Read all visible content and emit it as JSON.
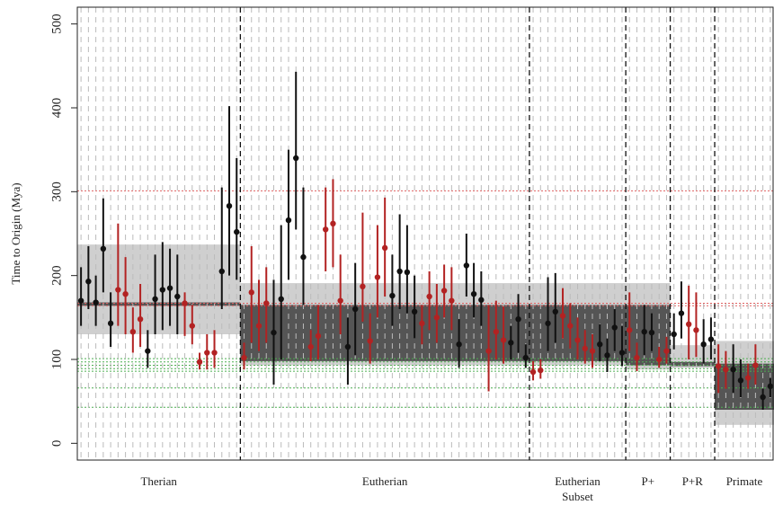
{
  "chart_data": {
    "type": "scatter",
    "ylabel": "Time to Origin (Mya)",
    "xlabel": "",
    "ylim": [
      -20,
      520
    ],
    "yticks": [
      0,
      100,
      200,
      300,
      400,
      500
    ],
    "grid": "vertical dashed lines per estimate",
    "colors": {
      "series_black": "#111111",
      "series_red": "#b22222",
      "band_light": "#cfcfcf",
      "band_dark": "#555555",
      "ref_red": "#e06060",
      "ref_green": "#4caf50"
    },
    "red_reference_lines": [
      301,
      167,
      164
    ],
    "green_reference_lines": [
      101,
      97,
      93,
      89,
      86,
      66,
      43
    ],
    "groups": [
      {
        "label": "Therian",
        "outer_band": [
          130,
          237
        ],
        "inner_band": [
          164,
          168
        ],
        "points": [
          {
            "y": 170,
            "lo": 140,
            "hi": 210,
            "c": "k"
          },
          {
            "y": 193,
            "lo": 160,
            "hi": 235,
            "c": "k"
          },
          {
            "y": 168,
            "lo": 140,
            "hi": 200,
            "c": "k"
          },
          {
            "y": 232,
            "lo": 180,
            "hi": 292,
            "c": "k"
          },
          {
            "y": 143,
            "lo": 115,
            "hi": 180,
            "c": "k"
          },
          {
            "y": 183,
            "lo": 140,
            "hi": 262,
            "c": "r"
          },
          {
            "y": 178,
            "lo": 130,
            "hi": 222,
            "c": "r"
          },
          {
            "y": 133,
            "lo": 108,
            "hi": 162,
            "c": "r"
          },
          {
            "y": 148,
            "lo": 115,
            "hi": 190,
            "c": "r"
          },
          {
            "y": 110,
            "lo": 90,
            "hi": 135,
            "c": "k"
          },
          {
            "y": 172,
            "lo": 130,
            "hi": 225,
            "c": "k"
          },
          {
            "y": 183,
            "lo": 135,
            "hi": 240,
            "c": "k"
          },
          {
            "y": 185,
            "lo": 140,
            "hi": 232,
            "c": "k"
          },
          {
            "y": 175,
            "lo": 130,
            "hi": 225,
            "c": "k"
          },
          {
            "y": 167,
            "lo": 128,
            "hi": 180,
            "c": "r"
          },
          {
            "y": 140,
            "lo": 118,
            "hi": 165,
            "c": "r"
          },
          {
            "y": 97,
            "lo": 88,
            "hi": 108,
            "c": "r"
          },
          {
            "y": 108,
            "lo": 88,
            "hi": 130,
            "c": "r"
          },
          {
            "y": 108,
            "lo": 90,
            "hi": 135,
            "c": "r"
          },
          {
            "y": 205,
            "lo": 160,
            "hi": 305,
            "c": "k"
          },
          {
            "y": 283,
            "lo": 200,
            "hi": 402,
            "c": "k"
          },
          {
            "y": 252,
            "lo": 195,
            "hi": 340,
            "c": "k"
          }
        ]
      },
      {
        "label": "Eutherian",
        "outer_band": [
          93,
          191
        ],
        "inner_band": [
          98,
          165
        ],
        "points": [
          {
            "y": 102,
            "lo": 88,
            "hi": 120,
            "c": "r"
          },
          {
            "y": 180,
            "lo": 120,
            "hi": 235,
            "c": "r"
          },
          {
            "y": 140,
            "lo": 110,
            "hi": 195,
            "c": "r"
          },
          {
            "y": 167,
            "lo": 120,
            "hi": 210,
            "c": "r"
          },
          {
            "y": 132,
            "lo": 70,
            "hi": 195,
            "c": "k"
          },
          {
            "y": 172,
            "lo": 100,
            "hi": 260,
            "c": "k"
          },
          {
            "y": 266,
            "lo": 195,
            "hi": 350,
            "c": "k"
          },
          {
            "y": 340,
            "lo": 255,
            "hi": 443,
            "c": "k"
          },
          {
            "y": 222,
            "lo": 165,
            "hi": 305,
            "c": "k"
          },
          {
            "y": 115,
            "lo": 98,
            "hi": 135,
            "c": "r"
          },
          {
            "y": 128,
            "lo": 100,
            "hi": 165,
            "c": "r"
          },
          {
            "y": 255,
            "lo": 205,
            "hi": 305,
            "c": "r"
          },
          {
            "y": 262,
            "lo": 210,
            "hi": 315,
            "c": "r"
          },
          {
            "y": 170,
            "lo": 130,
            "hi": 225,
            "c": "r"
          },
          {
            "y": 115,
            "lo": 70,
            "hi": 150,
            "c": "k"
          },
          {
            "y": 160,
            "lo": 105,
            "hi": 215,
            "c": "k"
          },
          {
            "y": 187,
            "lo": 145,
            "hi": 275,
            "c": "r"
          },
          {
            "y": 122,
            "lo": 95,
            "hi": 155,
            "c": "r"
          },
          {
            "y": 198,
            "lo": 150,
            "hi": 260,
            "c": "r"
          },
          {
            "y": 233,
            "lo": 175,
            "hi": 293,
            "c": "r"
          },
          {
            "y": 176,
            "lo": 140,
            "hi": 225,
            "c": "k"
          },
          {
            "y": 205,
            "lo": 160,
            "hi": 273,
            "c": "k"
          },
          {
            "y": 204,
            "lo": 155,
            "hi": 260,
            "c": "k"
          },
          {
            "y": 157,
            "lo": 125,
            "hi": 200,
            "c": "k"
          },
          {
            "y": 143,
            "lo": 118,
            "hi": 165,
            "c": "r"
          },
          {
            "y": 175,
            "lo": 135,
            "hi": 205,
            "c": "r"
          },
          {
            "y": 150,
            "lo": 120,
            "hi": 190,
            "c": "r"
          },
          {
            "y": 182,
            "lo": 150,
            "hi": 213,
            "c": "r"
          },
          {
            "y": 170,
            "lo": 135,
            "hi": 210,
            "c": "r"
          },
          {
            "y": 118,
            "lo": 90,
            "hi": 148,
            "c": "k"
          },
          {
            "y": 212,
            "lo": 175,
            "hi": 250,
            "c": "k"
          },
          {
            "y": 178,
            "lo": 150,
            "hi": 215,
            "c": "k"
          },
          {
            "y": 171,
            "lo": 140,
            "hi": 205,
            "c": "k"
          },
          {
            "y": 110,
            "lo": 62,
            "hi": 165,
            "c": "r"
          },
          {
            "y": 133,
            "lo": 100,
            "hi": 170,
            "c": "r"
          },
          {
            "y": 123,
            "lo": 95,
            "hi": 163,
            "c": "r"
          },
          {
            "y": 120,
            "lo": 100,
            "hi": 140,
            "c": "k"
          },
          {
            "y": 148,
            "lo": 108,
            "hi": 178,
            "c": "k"
          },
          {
            "y": 102,
            "lo": 90,
            "hi": 118,
            "c": "k"
          }
        ]
      },
      {
        "label": "Eutherian Subset",
        "outer_band": [
          93,
          191
        ],
        "inner_band": [
          98,
          165
        ],
        "points": [
          {
            "y": 85,
            "lo": 75,
            "hi": 98,
            "c": "r"
          },
          {
            "y": 87,
            "lo": 77,
            "hi": 100,
            "c": "r"
          },
          {
            "y": 143,
            "lo": 110,
            "hi": 198,
            "c": "k"
          },
          {
            "y": 157,
            "lo": 120,
            "hi": 203,
            "c": "k"
          },
          {
            "y": 152,
            "lo": 125,
            "hi": 185,
            "c": "r"
          },
          {
            "y": 140,
            "lo": 113,
            "hi": 167,
            "c": "r"
          },
          {
            "y": 123,
            "lo": 100,
            "hi": 150,
            "c": "r"
          },
          {
            "y": 113,
            "lo": 95,
            "hi": 135,
            "c": "r"
          },
          {
            "y": 110,
            "lo": 90,
            "hi": 130,
            "c": "r"
          },
          {
            "y": 118,
            "lo": 98,
            "hi": 142,
            "c": "k"
          },
          {
            "y": 105,
            "lo": 85,
            "hi": 125,
            "c": "k"
          },
          {
            "y": 138,
            "lo": 110,
            "hi": 160,
            "c": "k"
          },
          {
            "y": 108,
            "lo": 92,
            "hi": 140,
            "c": "k"
          }
        ]
      },
      {
        "label": "P+",
        "outer_band": [
          88,
          191
        ],
        "inner_band": [
          93,
          165
        ],
        "points": [
          {
            "y": 135,
            "lo": 110,
            "hi": 180,
            "c": "r"
          },
          {
            "y": 102,
            "lo": 86,
            "hi": 120,
            "c": "r"
          },
          {
            "y": 133,
            "lo": 105,
            "hi": 165,
            "c": "k"
          },
          {
            "y": 132,
            "lo": 110,
            "hi": 155,
            "c": "k"
          },
          {
            "y": 100,
            "lo": 90,
            "hi": 115,
            "c": "r"
          },
          {
            "y": 110,
            "lo": 95,
            "hi": 127,
            "c": "r"
          }
        ]
      },
      {
        "label": "P+R",
        "outer_band": [
          90,
          117
        ],
        "inner_band": [
          92,
          97
        ],
        "points": [
          {
            "y": 130,
            "lo": 112,
            "hi": 155,
            "c": "k"
          },
          {
            "y": 155,
            "lo": 125,
            "hi": 193,
            "c": "k"
          },
          {
            "y": 142,
            "lo": 100,
            "hi": 188,
            "c": "r"
          },
          {
            "y": 135,
            "lo": 103,
            "hi": 180,
            "c": "r"
          },
          {
            "y": 118,
            "lo": 95,
            "hi": 148,
            "c": "k"
          },
          {
            "y": 124,
            "lo": 100,
            "hi": 150,
            "c": "k"
          }
        ]
      },
      {
        "label": "Primate",
        "outer_band": [
          22,
          122
        ],
        "inner_band": [
          40,
          95
        ],
        "points": [
          {
            "y": 92,
            "lo": 60,
            "hi": 118,
            "c": "r"
          },
          {
            "y": 88,
            "lo": 65,
            "hi": 110,
            "c": "r"
          },
          {
            "y": 88,
            "lo": 60,
            "hi": 118,
            "c": "k"
          },
          {
            "y": 75,
            "lo": 55,
            "hi": 100,
            "c": "k"
          },
          {
            "y": 78,
            "lo": 65,
            "hi": 95,
            "c": "r"
          },
          {
            "y": 93,
            "lo": 70,
            "hi": 118,
            "c": "r"
          },
          {
            "y": 55,
            "lo": 40,
            "hi": 65,
            "c": "k"
          },
          {
            "y": 68,
            "lo": 55,
            "hi": 78,
            "c": "k"
          }
        ]
      }
    ]
  }
}
